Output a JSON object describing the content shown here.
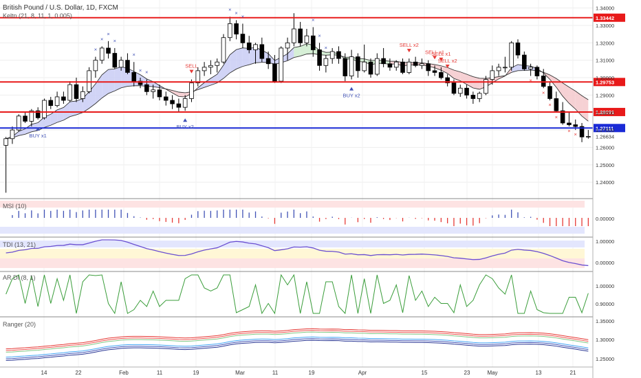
{
  "header": {
    "title": "British Pound / U.S. Dollar, 1D, FXCM",
    "indicator_line": "Keltn (21, 8, 11, 1, 0.005)"
  },
  "chart_data": {
    "type": "candlestick",
    "symbol": "British Pound / U.S. Dollar",
    "interval": "1D",
    "source": "FXCM",
    "ylim": [
      1.231,
      1.343
    ],
    "y_ticks": [
      "1.34000",
      "1.33000",
      "1.32000",
      "1.31000",
      "1.30000",
      "1.29000",
      "1.28000",
      "1.27000",
      "1.26000",
      "1.25000",
      "1.24000"
    ],
    "x_tick_labels": [
      "14",
      "22",
      "Feb",
      "11",
      "19",
      "Mar",
      "11",
      "19",
      "Apr",
      "15",
      "23",
      "May",
      "13",
      "21"
    ],
    "grid": true,
    "horizontal_levels": [
      {
        "value": 1.33442,
        "label": "1.33442",
        "color": "#e81a1a"
      },
      {
        "value": 1.29753,
        "label": "1.29753",
        "color": "#e81a1a"
      },
      {
        "value": 1.28031,
        "label": "1.28031",
        "color": "#e81a1a"
      },
      {
        "value": 1.27111,
        "label": "1.27111",
        "color": "#1a2ad6"
      }
    ],
    "last_price": {
      "value": 1.26634,
      "label": "1.26634"
    },
    "candles": [
      [
        1.2612,
        1.266,
        1.234,
        1.265
      ],
      [
        1.265,
        1.272,
        1.262,
        1.27
      ],
      [
        1.27,
        1.279,
        1.269,
        1.278
      ],
      [
        1.278,
        1.28,
        1.274,
        1.275
      ],
      [
        1.275,
        1.282,
        1.272,
        1.281
      ],
      [
        1.281,
        1.283,
        1.276,
        1.277
      ],
      [
        1.277,
        1.288,
        1.276,
        1.287
      ],
      [
        1.287,
        1.289,
        1.282,
        1.284
      ],
      [
        1.284,
        1.292,
        1.283,
        1.289
      ],
      [
        1.289,
        1.292,
        1.285,
        1.287
      ],
      [
        1.287,
        1.298,
        1.286,
        1.296
      ],
      [
        1.296,
        1.3,
        1.286,
        1.288
      ],
      [
        1.288,
        1.295,
        1.286,
        1.292
      ],
      [
        1.292,
        1.306,
        1.291,
        1.304
      ],
      [
        1.304,
        1.312,
        1.3,
        1.31
      ],
      [
        1.31,
        1.318,
        1.308,
        1.317
      ],
      [
        1.317,
        1.321,
        1.311,
        1.314
      ],
      [
        1.314,
        1.317,
        1.305,
        1.306
      ],
      [
        1.306,
        1.312,
        1.304,
        1.31
      ],
      [
        1.31,
        1.314,
        1.302,
        1.303
      ],
      [
        1.303,
        1.309,
        1.295,
        1.298
      ],
      [
        1.298,
        1.3,
        1.294,
        1.296
      ],
      [
        1.296,
        1.299,
        1.29,
        1.292
      ],
      [
        1.292,
        1.296,
        1.288,
        1.293
      ],
      [
        1.293,
        1.296,
        1.287,
        1.289
      ],
      [
        1.289,
        1.292,
        1.284,
        1.287
      ],
      [
        1.287,
        1.29,
        1.282,
        1.285
      ],
      [
        1.285,
        1.288,
        1.28,
        1.283
      ],
      [
        1.283,
        1.29,
        1.281,
        1.288
      ],
      [
        1.288,
        1.299,
        1.286,
        1.297
      ],
      [
        1.297,
        1.306,
        1.295,
        1.304
      ],
      [
        1.304,
        1.309,
        1.301,
        1.306
      ],
      [
        1.306,
        1.31,
        1.302,
        1.307
      ],
      [
        1.307,
        1.311,
        1.303,
        1.309
      ],
      [
        1.309,
        1.325,
        1.308,
        1.323
      ],
      [
        1.323,
        1.335,
        1.321,
        1.331
      ],
      [
        1.331,
        1.333,
        1.322,
        1.325
      ],
      [
        1.325,
        1.331,
        1.317,
        1.32
      ],
      [
        1.32,
        1.324,
        1.314,
        1.316
      ],
      [
        1.316,
        1.32,
        1.308,
        1.319
      ],
      [
        1.319,
        1.323,
        1.309,
        1.311
      ],
      [
        1.311,
        1.315,
        1.305,
        1.308
      ],
      [
        1.308,
        1.313,
        1.297,
        1.298
      ],
      [
        1.298,
        1.318,
        1.297,
        1.317
      ],
      [
        1.317,
        1.323,
        1.31,
        1.32
      ],
      [
        1.32,
        1.337,
        1.318,
        1.328
      ],
      [
        1.328,
        1.332,
        1.318,
        1.32
      ],
      [
        1.32,
        1.328,
        1.318,
        1.324
      ],
      [
        1.324,
        1.329,
        1.312,
        1.316
      ],
      [
        1.316,
        1.32,
        1.304,
        1.307
      ],
      [
        1.307,
        1.313,
        1.303,
        1.311
      ],
      [
        1.311,
        1.317,
        1.308,
        1.315
      ],
      [
        1.315,
        1.318,
        1.308,
        1.311
      ],
      [
        1.311,
        1.314,
        1.298,
        1.301
      ],
      [
        1.301,
        1.316,
        1.299,
        1.312
      ],
      [
        1.312,
        1.314,
        1.3,
        1.304
      ],
      [
        1.304,
        1.319,
        1.303,
        1.309
      ],
      [
        1.309,
        1.311,
        1.3,
        1.302
      ],
      [
        1.302,
        1.314,
        1.301,
        1.311
      ],
      [
        1.311,
        1.317,
        1.306,
        1.308
      ],
      [
        1.308,
        1.311,
        1.304,
        1.306
      ],
      [
        1.306,
        1.31,
        1.304,
        1.309
      ],
      [
        1.309,
        1.311,
        1.302,
        1.303
      ],
      [
        1.303,
        1.311,
        1.302,
        1.309
      ],
      [
        1.309,
        1.312,
        1.306,
        1.307
      ],
      [
        1.307,
        1.311,
        1.305,
        1.308
      ],
      [
        1.308,
        1.31,
        1.301,
        1.304
      ],
      [
        1.304,
        1.307,
        1.301,
        1.303
      ],
      [
        1.303,
        1.306,
        1.299,
        1.3
      ],
      [
        1.3,
        1.302,
        1.295,
        1.297
      ],
      [
        1.297,
        1.299,
        1.29,
        1.291
      ],
      [
        1.291,
        1.296,
        1.289,
        1.294
      ],
      [
        1.294,
        1.296,
        1.288,
        1.29
      ],
      [
        1.29,
        1.292,
        1.285,
        1.288
      ],
      [
        1.288,
        1.292,
        1.286,
        1.291
      ],
      [
        1.291,
        1.301,
        1.29,
        1.299
      ],
      [
        1.299,
        1.307,
        1.296,
        1.304
      ],
      [
        1.304,
        1.308,
        1.301,
        1.306
      ],
      [
        1.306,
        1.312,
        1.303,
        1.306
      ],
      [
        1.306,
        1.321,
        1.304,
        1.32
      ],
      [
        1.32,
        1.322,
        1.311,
        1.313
      ],
      [
        1.313,
        1.315,
        1.304,
        1.305
      ],
      [
        1.305,
        1.308,
        1.301,
        1.306
      ],
      [
        1.306,
        1.307,
        1.299,
        1.301
      ],
      [
        1.301,
        1.305,
        1.294,
        1.295
      ],
      [
        1.295,
        1.298,
        1.287,
        1.288
      ],
      [
        1.288,
        1.292,
        1.28,
        1.281
      ],
      [
        1.281,
        1.286,
        1.273,
        1.274
      ],
      [
        1.274,
        1.28,
        1.272,
        1.273
      ],
      [
        1.273,
        1.276,
        1.27,
        1.272
      ],
      [
        1.272,
        1.274,
        1.263,
        1.266
      ],
      [
        1.266,
        1.27,
        1.265,
        1.2663
      ]
    ],
    "signals": [
      {
        "index": 5,
        "text": "BUY x1",
        "type": "buy"
      },
      {
        "index": 29,
        "text": "SELL",
        "type": "sell"
      },
      {
        "index": 28,
        "text": "BUY x2",
        "type": "buy"
      },
      {
        "index": 54,
        "text": "BUY x2",
        "type": "buy"
      },
      {
        "index": 63,
        "text": "SELL x2",
        "type": "sell"
      },
      {
        "index": 68,
        "text": "SELL x1",
        "type": "sell"
      },
      {
        "index": 67,
        "text": "SELL x1",
        "type": "sell"
      },
      {
        "index": 69,
        "text": "SELL x2",
        "type": "sell"
      }
    ],
    "indicators": [
      {
        "name": "MSI (10)",
        "levels": [
          "0.00000"
        ]
      },
      {
        "name": "TDI (13, 21)",
        "levels": [
          "1.00000",
          "0.00000"
        ]
      },
      {
        "name": "AR DI (8, 1)",
        "levels": [
          "1.00000",
          "0.90000"
        ]
      },
      {
        "name": "Ranger (20)",
        "levels": [
          "1.35000",
          "1.30000",
          "1.25000"
        ]
      }
    ]
  },
  "colors": {
    "bull_body": "#ffffff",
    "bear_body": "#000000",
    "wick": "#000000",
    "cloud_up": "#c9cdf5",
    "cloud_down": "#f5c9cc",
    "cloud_green": "#cfeccf",
    "buy": "#3f51b5",
    "sell": "#e53935"
  }
}
